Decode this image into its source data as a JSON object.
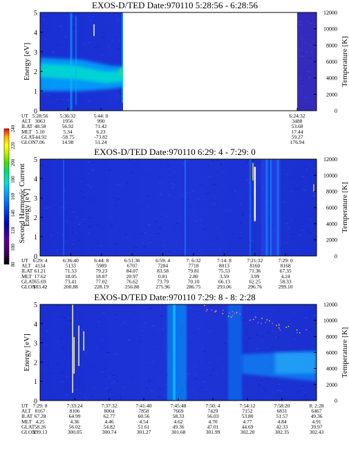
{
  "chart_data": [
    {
      "type": "heatmap",
      "title": "EXOS-D/TED   Date:970110  5:28:56 - 6:28:56",
      "ylabel": "Energy [eV]",
      "ylabel_right": "Temperature [K]",
      "ylim": [
        0,
        5
      ],
      "ylim_right": [
        0,
        12000
      ],
      "yticks": [
        "0",
        "1",
        "2",
        "3",
        "4",
        "5"
      ],
      "yticks_right": [
        "0",
        "2000",
        "4000",
        "6000",
        "8000",
        "10000",
        "12000"
      ],
      "data_gaps": [
        [
          0.3,
          0.93
        ]
      ],
      "ephemeris": {
        "rows": [
          "UT",
          "ALT",
          "ILAT",
          "MLT",
          "GLAT",
          "GLON"
        ],
        "columns": [
          {
            "x": 0.0,
            "values": [
              "5:28:56",
              "3063",
              "48.58",
              "5.10",
              "-44.92",
              "7.06"
            ]
          },
          {
            "x": 0.1,
            "values": [
              "5:36:32",
              "1956",
              "56.92",
              "5.34",
              "-58.75",
              "14.98"
            ]
          },
          {
            "x": 0.22,
            "values": [
              "5:44: 0",
              "990",
              "71.42",
              "6.23",
              "-73.82",
              "51.24"
            ]
          },
          {
            "x": 0.93,
            "values": [
              "6:24:32",
              "3488",
              "53.68",
              "17.44",
              "59.27",
              "176.94"
            ]
          }
        ]
      }
    },
    {
      "type": "heatmap",
      "title": "EXOS-D/TED   Date:970110  6:29: 4 - 7:29: 0",
      "ylabel": "Energy [eV]",
      "ylabel_right": "Temperature [K]",
      "ylim": [
        0,
        5
      ],
      "ylim_right": [
        0,
        12000
      ],
      "yticks": [
        "0",
        "1",
        "2",
        "3",
        "4",
        "5"
      ],
      "yticks_right": [
        "0",
        "2000",
        "4000",
        "6000",
        "8000",
        "10000",
        "12000"
      ],
      "data_gaps": [],
      "ephemeris": {
        "rows": [
          "UT",
          "ALT",
          "ILAT",
          "MLT",
          "GLAT",
          "GLON"
        ],
        "columns": [
          {
            "x": 0.0,
            "values": [
              "6:29: 4",
              "4134",
              "61.21",
              "17.62",
              "65.69",
              "183.42"
            ]
          },
          {
            "x": 0.111,
            "values": [
              "6:36:40",
              "5133",
              "71.53",
              "18.05",
              "73.41",
              "200.88"
            ]
          },
          {
            "x": 0.222,
            "values": [
              "6:44: 8",
              "5989",
              "79.23",
              "18.87",
              "77.02",
              "228.19"
            ]
          },
          {
            "x": 0.333,
            "values": [
              "6:51:36",
              "6707",
              "84.07",
              "20.97",
              "76.62",
              "256.88"
            ]
          },
          {
            "x": 0.444,
            "values": [
              "6:59: 4",
              "7284",
              "83.58",
              "0.81",
              "73.79",
              "275.96"
            ]
          },
          {
            "x": 0.555,
            "values": [
              "7: 6:32",
              "7718",
              "79.81",
              "2.80",
              "70.10",
              "286.75"
            ]
          },
          {
            "x": 0.666,
            "values": [
              "7:14: 8",
              "8013",
              "75.53",
              "3.59",
              "66.13",
              "293.06"
            ]
          },
          {
            "x": 0.777,
            "values": [
              "7:21:32",
              "8160",
              "71.36",
              "3.99",
              "62.25",
              "296.76"
            ]
          },
          {
            "x": 0.888,
            "values": [
              "7:29: 0",
              "8168",
              "67.35",
              "4.24",
              "58.33",
              "299.10"
            ]
          }
        ]
      }
    },
    {
      "type": "heatmap",
      "title": "EXOS-D/TED   Date:970110  7:29: 8 - 8: 2:28",
      "ylabel": "Energy [eV]",
      "ylabel_right": "Temperature [K]",
      "ylim": [
        0,
        5
      ],
      "ylim_right": [
        0,
        12000
      ],
      "yticks": [
        "0",
        "1",
        "2",
        "3",
        "4",
        "5"
      ],
      "yticks_right": [
        "0",
        "2000",
        "4000",
        "6000",
        "8000",
        "10000",
        "12000"
      ],
      "data_gaps": [],
      "ephemeris": {
        "rows": [
          "UT",
          "ALT",
          "ILAT",
          "MLT",
          "GLAT",
          "GLON"
        ],
        "columns": [
          {
            "x": 0.0,
            "values": [
              "7:29: 8",
              "8167",
              "67.28",
              "4.25",
              "58.26",
              "299.13"
            ]
          },
          {
            "x": 0.125,
            "values": [
              "7:33:24",
              "8106",
              "64.99",
              "4.36",
              "56.02",
              "300.05"
            ]
          },
          {
            "x": 0.25,
            "values": [
              "7:37:32",
              "8004",
              "62.77",
              "4.46",
              "54.82",
              "300.74"
            ]
          },
          {
            "x": 0.375,
            "values": [
              "7:41:40",
              "7858",
              "60.56",
              "4.54",
              "51.61",
              "301.27"
            ]
          },
          {
            "x": 0.5,
            "values": [
              "7:45:48",
              "7669",
              "58.33",
              "4.62",
              "49.36",
              "301.68"
            ]
          },
          {
            "x": 0.625,
            "values": [
              "7:50: 4",
              "7429",
              "56.03",
              "4.70",
              "47.01",
              "301.99"
            ]
          },
          {
            "x": 0.75,
            "values": [
              "7:54:12",
              "7152",
              "53.80",
              "4.77",
              "44.69",
              "302.20"
            ]
          },
          {
            "x": 0.875,
            "values": [
              "7:58:20",
              "6831",
              "51.57",
              "4.84",
              "42.33",
              "302.35"
            ]
          },
          {
            "x": 1.0,
            "values": [
              "8: 2:28",
              "6467",
              "49.36",
              "4.91",
              "39.97",
              "302.43"
            ]
          }
        ]
      }
    }
  ],
  "colorbar": {
    "label": "Second Harmonic Current",
    "range": [
      80,
      240
    ],
    "ticks": [
      "80",
      "100",
      "120",
      "140",
      "160",
      "180",
      "200",
      "220",
      "240"
    ],
    "colors": [
      "#000000",
      "#3c005a",
      "#5a0096",
      "#0000b4",
      "#0050ff",
      "#00a0ff",
      "#00e0e0",
      "#00e070",
      "#40e000",
      "#c0f000",
      "#ffff00",
      "#ffb000",
      "#ff0000"
    ]
  }
}
